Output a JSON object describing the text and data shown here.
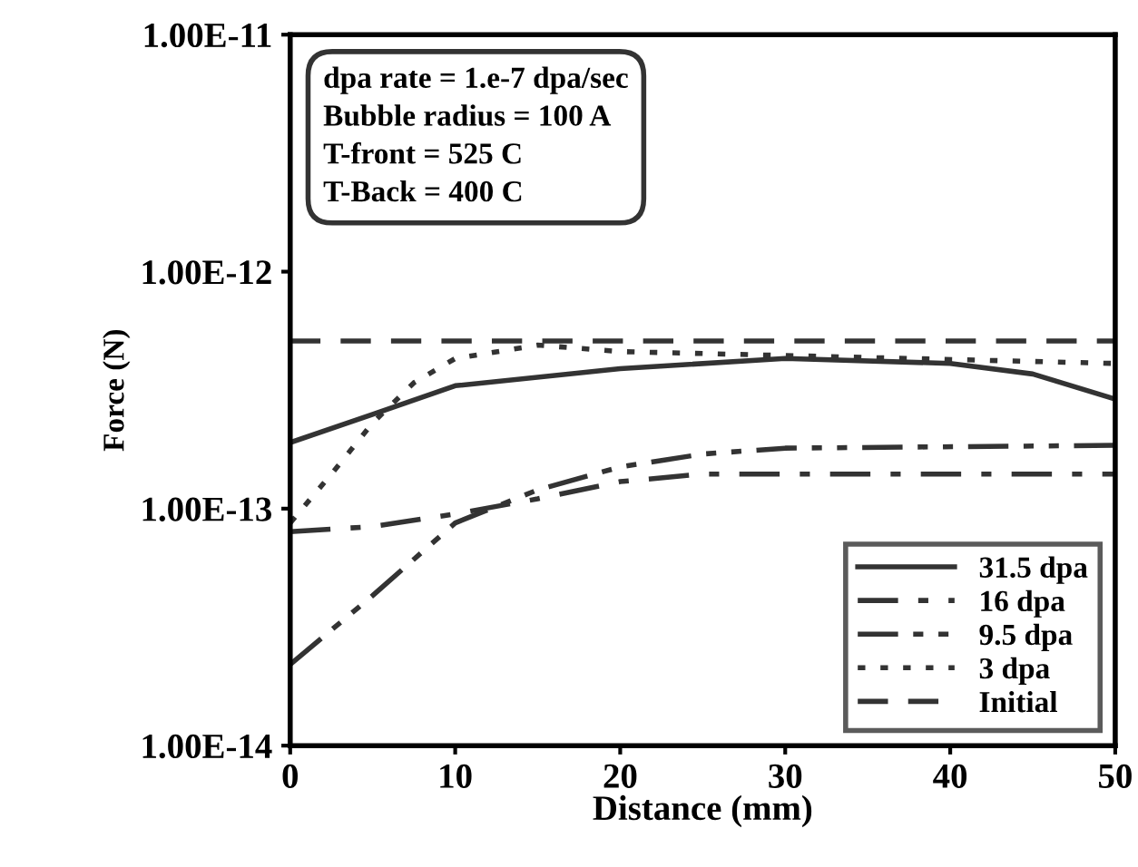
{
  "chart_data": {
    "type": "line",
    "xlabel": "Distance (mm)",
    "ylabel": "Force (N)",
    "annotations": [
      "dpa rate = 1.e-7 dpa/sec\nBubble radius = 100 A\nT-front = 525 C\nT-Back = 400 C"
    ],
    "log": "y",
    "xlim": [
      0,
      50
    ],
    "xticks": [
      0,
      10,
      20,
      30,
      40,
      50
    ],
    "ylim": [
      1e-14,
      1e-11
    ],
    "yticks": [
      {
        "value": 1e-14,
        "label": "1.00E-14"
      },
      {
        "value": 1e-13,
        "label": "1.00E-13"
      },
      {
        "value": 1e-12,
        "label": "1.00E-12"
      },
      {
        "value": 1e-11,
        "label": "1.00E-11"
      }
    ],
    "legend": "lower right",
    "grid": false,
    "marker": "none",
    "series": [
      {
        "name": "31.5 dpa",
        "color": "#333333",
        "line_style": "solid",
        "x": [
          0,
          5,
          10,
          20,
          30,
          40,
          45,
          50
        ],
        "values": [
          1.9e-13,
          2.5e-13,
          3.3e-13,
          3.9e-13,
          4.3e-13,
          4.1e-13,
          3.7e-13,
          2.9e-13
        ]
      },
      {
        "name": "16 dpa",
        "color": "#333333",
        "line_style": "dashdot",
        "x": [
          0,
          5,
          10,
          15,
          20,
          25,
          30,
          50
        ],
        "values": [
          8e-14,
          8.4e-14,
          9.5e-14,
          1.1e-13,
          1.3e-13,
          1.4e-13,
          1.4e-13,
          1.4e-13
        ]
      },
      {
        "name": "9.5 dpa",
        "color": "#333333",
        "line_style": "dashdotdot",
        "x": [
          0,
          5,
          10,
          15,
          20,
          25,
          30,
          50
        ],
        "values": [
          2.2e-14,
          4.3e-14,
          8.7e-14,
          1.2e-13,
          1.5e-13,
          1.7e-13,
          1.8e-13,
          1.85e-13
        ]
      },
      {
        "name": "3 dpa",
        "color": "#333333",
        "line_style": "dotted",
        "x": [
          0,
          2.5,
          5,
          7.5,
          10,
          15,
          20,
          50
        ],
        "values": [
          8.7e-14,
          1.4e-13,
          2.3e-13,
          3.4e-13,
          4.3e-13,
          4.9e-13,
          4.6e-13,
          4.1e-13
        ]
      },
      {
        "name": "Initial",
        "color": "#333333",
        "line_style": "dashed",
        "x": [
          0,
          50
        ],
        "values": [
          5.1e-13,
          5.1e-13
        ]
      }
    ]
  }
}
